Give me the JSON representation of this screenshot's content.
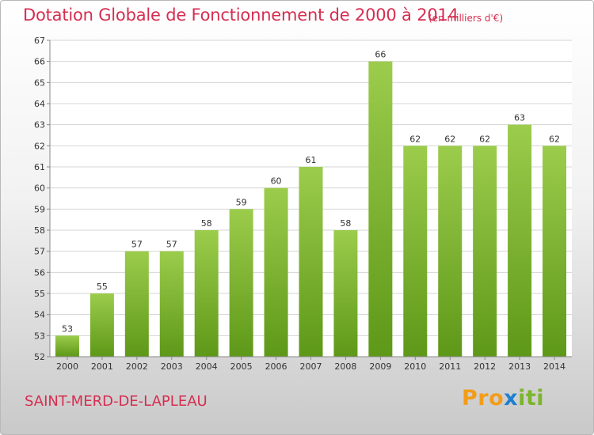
{
  "header": {
    "title": "Dotation Globale de Fonctionnement de 2000 à 2014",
    "subtitle": "(en milliers d'€)"
  },
  "footer": {
    "commune": "SAINT-MERD-DE-LAPLEAU",
    "logo": [
      "Pro",
      "x",
      "iti"
    ]
  },
  "colors": {
    "bar_top": "#9ccc4c",
    "bar_bottom": "#5e9818",
    "accent_text": "#d62d50",
    "grid": "#d4d4d4"
  },
  "chart_data": {
    "type": "bar",
    "categories": [
      "2000",
      "2001",
      "2002",
      "2003",
      "2004",
      "2005",
      "2006",
      "2007",
      "2008",
      "2009",
      "2010",
      "2011",
      "2012",
      "2013",
      "2014"
    ],
    "values": [
      53,
      55,
      57,
      57,
      58,
      59,
      60,
      61,
      58,
      66,
      62,
      62,
      62,
      63,
      62
    ],
    "title": "Dotation Globale de Fonctionnement de 2000 à 2014",
    "subtitle": "(en milliers d'€)",
    "ylim": [
      52,
      67
    ],
    "yticks": [
      52,
      53,
      54,
      55,
      56,
      57,
      58,
      59,
      60,
      61,
      62,
      63,
      64,
      65,
      66,
      67
    ],
    "grid": true,
    "data_labels": true
  }
}
